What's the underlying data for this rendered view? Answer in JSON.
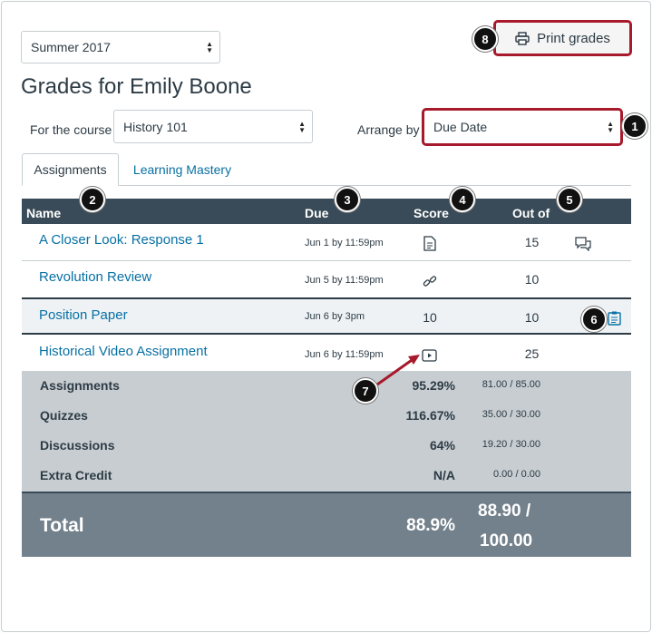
{
  "term_select": {
    "value": "Summer 2017"
  },
  "print_button": {
    "label": "Print grades"
  },
  "page_title": "Grades for Emily Boone",
  "course": {
    "label": "For the course",
    "value": "History 101"
  },
  "arrange": {
    "label": "Arrange by",
    "value": "Due Date"
  },
  "tabs": [
    {
      "label": "Assignments",
      "active": true
    },
    {
      "label": "Learning Mastery",
      "active": false
    }
  ],
  "table": {
    "headers": {
      "name": "Name",
      "due": "Due",
      "score": "Score",
      "out_of": "Out of"
    },
    "rows": [
      {
        "name": "A Closer Look: Response 1",
        "due": "Jun 1 by 11:59pm",
        "score_icon": "document-icon",
        "score": "",
        "out_of": "15",
        "extra_icon": "comments-icon"
      },
      {
        "name": "Revolution Review",
        "due": "Jun 5 by 11:59pm",
        "score_icon": "link-icon",
        "score": "",
        "out_of": "10",
        "extra_icon": ""
      },
      {
        "name": "Position Paper",
        "due": "Jun 6 by 3pm",
        "score_icon": "",
        "score": "10",
        "out_of": "10",
        "extra_icon": "rubric-icon"
      },
      {
        "name": "Historical Video Assignment",
        "due": "Jun 6 by 11:59pm",
        "score_icon": "video-icon",
        "score": "",
        "out_of": "25",
        "extra_icon": ""
      }
    ]
  },
  "summary": [
    {
      "label": "Assignments",
      "percent": "95.29%",
      "points": "81.00 / 85.00"
    },
    {
      "label": "Quizzes",
      "percent": "116.67%",
      "points": "35.00 / 30.00"
    },
    {
      "label": "Discussions",
      "percent": "64%",
      "points": "19.20 / 30.00"
    },
    {
      "label": "Extra Credit",
      "percent": "N/A",
      "points": "0.00 / 0.00"
    }
  ],
  "total": {
    "label": "Total",
    "percent": "88.9%",
    "points_line1": "88.90 /",
    "points_line2": "100.00"
  },
  "callouts": [
    "1",
    "2",
    "3",
    "4",
    "5",
    "6",
    "7",
    "8"
  ],
  "colors": {
    "link": "#0770a3",
    "header_bg": "#394b58",
    "summary_bg": "#c7cdd1",
    "total_bg": "#73818c",
    "callout_red": "#a61a2b"
  }
}
